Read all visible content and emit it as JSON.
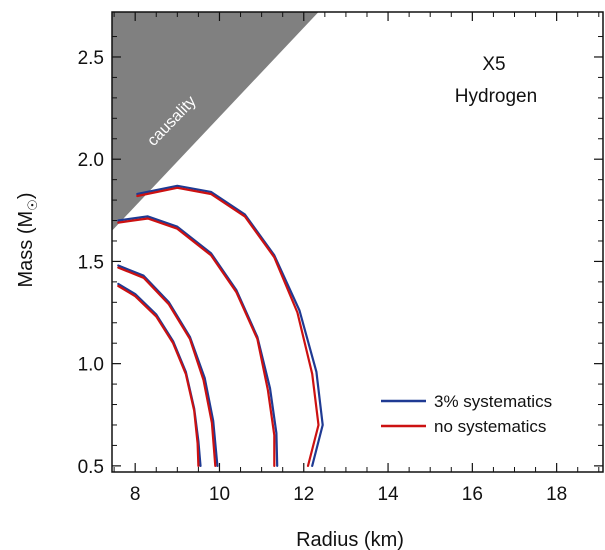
{
  "chart_data": {
    "type": "line",
    "xlabel": "Radius (km)",
    "ylabel_main": "Mass (M",
    "ylabel_sub": "☉",
    "ylabel_close": ")",
    "xlim": [
      7.45,
      19.1
    ],
    "ylim": [
      0.47,
      2.72
    ],
    "xticks": [
      8,
      10,
      12,
      14,
      16,
      18
    ],
    "xtick_labels": [
      "8",
      "10",
      "12",
      "14",
      "16",
      "18"
    ],
    "yticks": [
      0.5,
      1.0,
      1.5,
      2.0,
      2.5
    ],
    "ytick_labels": [
      "0.5",
      "1.0",
      "1.5",
      "2.0",
      "2.5"
    ],
    "annotations": [
      "X5",
      "Hydrogen"
    ],
    "causality_label": "causality",
    "causality_color": "#808080",
    "causality_region": [
      [
        7.45,
        2.72
      ],
      [
        12.35,
        2.72
      ],
      [
        7.45,
        1.65
      ]
    ],
    "legend": {
      "position": "lower-right",
      "entries": [
        {
          "label": "3% systematics",
          "color": "#1f3a93"
        },
        {
          "label": "no systematics",
          "color": "#cc1111"
        }
      ]
    },
    "series": [
      {
        "name": "3% systematics",
        "color": "#1f3a93",
        "contours": [
          [
            [
              7.6,
              1.39
            ],
            [
              8.0,
              1.34
            ],
            [
              8.5,
              1.24
            ],
            [
              8.9,
              1.11
            ],
            [
              9.2,
              0.96
            ],
            [
              9.4,
              0.78
            ],
            [
              9.5,
              0.62
            ],
            [
              9.55,
              0.5
            ]
          ],
          [
            [
              7.6,
              1.48
            ],
            [
              8.2,
              1.43
            ],
            [
              8.8,
              1.3
            ],
            [
              9.3,
              1.13
            ],
            [
              9.65,
              0.93
            ],
            [
              9.85,
              0.72
            ],
            [
              9.95,
              0.5
            ]
          ],
          [
            [
              7.6,
              1.7
            ],
            [
              8.3,
              1.72
            ],
            [
              9.0,
              1.67
            ],
            [
              9.8,
              1.54
            ],
            [
              10.4,
              1.36
            ],
            [
              10.9,
              1.13
            ],
            [
              11.2,
              0.88
            ],
            [
              11.35,
              0.66
            ],
            [
              11.37,
              0.5
            ]
          ],
          [
            [
              8.05,
              1.83
            ],
            [
              9.0,
              1.87
            ],
            [
              9.8,
              1.84
            ],
            [
              10.6,
              1.73
            ],
            [
              11.3,
              1.53
            ],
            [
              11.9,
              1.26
            ],
            [
              12.3,
              0.96
            ],
            [
              12.45,
              0.7
            ],
            [
              12.2,
              0.5
            ]
          ]
        ]
      },
      {
        "name": "no systematics",
        "color": "#cc1111",
        "contours": [
          [
            [
              7.6,
              1.38
            ],
            [
              8.0,
              1.33
            ],
            [
              8.5,
              1.23
            ],
            [
              8.9,
              1.1
            ],
            [
              9.2,
              0.95
            ],
            [
              9.4,
              0.77
            ],
            [
              9.48,
              0.61
            ],
            [
              9.5,
              0.5
            ]
          ],
          [
            [
              7.6,
              1.47
            ],
            [
              8.2,
              1.42
            ],
            [
              8.8,
              1.29
            ],
            [
              9.3,
              1.12
            ],
            [
              9.62,
              0.92
            ],
            [
              9.82,
              0.71
            ],
            [
              9.9,
              0.5
            ]
          ],
          [
            [
              7.6,
              1.69
            ],
            [
              8.3,
              1.71
            ],
            [
              9.0,
              1.66
            ],
            [
              9.8,
              1.53
            ],
            [
              10.4,
              1.35
            ],
            [
              10.9,
              1.12
            ],
            [
              11.15,
              0.87
            ],
            [
              11.3,
              0.65
            ],
            [
              11.3,
              0.5
            ]
          ],
          [
            [
              8.05,
              1.82
            ],
            [
              9.0,
              1.86
            ],
            [
              9.8,
              1.83
            ],
            [
              10.6,
              1.72
            ],
            [
              11.3,
              1.52
            ],
            [
              11.85,
              1.25
            ],
            [
              12.2,
              0.95
            ],
            [
              12.35,
              0.7
            ],
            [
              12.1,
              0.5
            ]
          ]
        ]
      }
    ]
  }
}
